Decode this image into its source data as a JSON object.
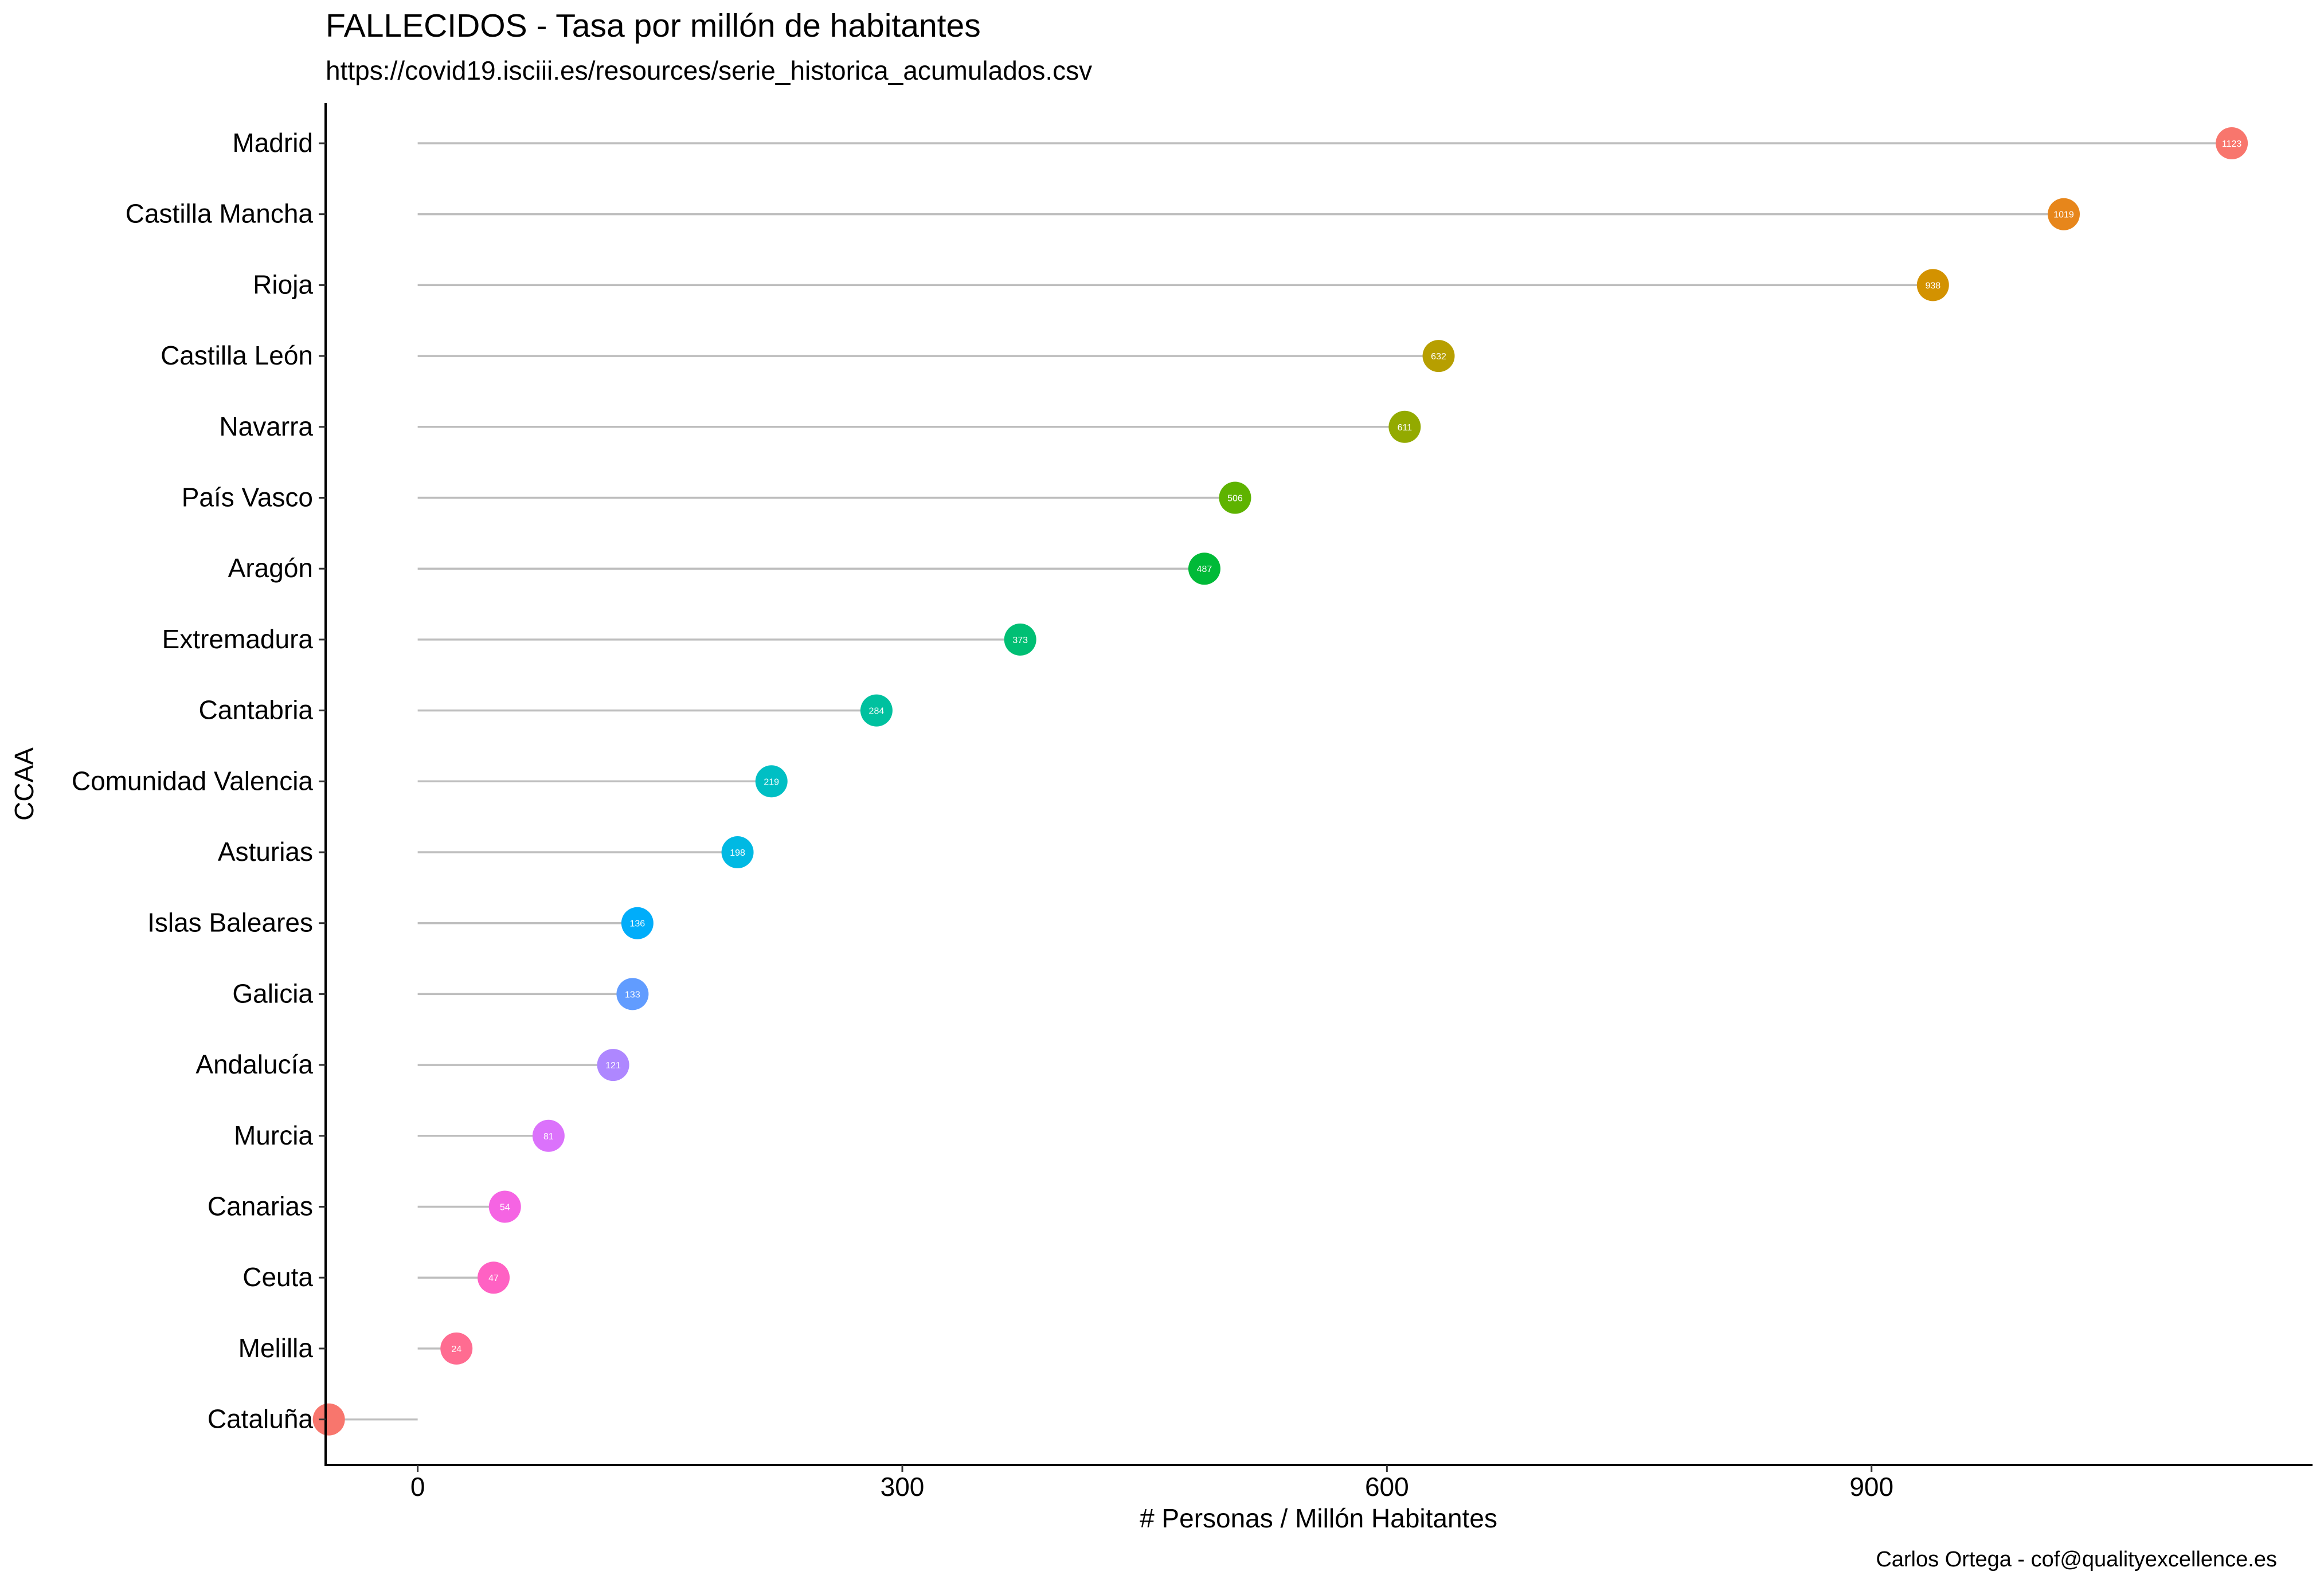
{
  "chart_data": {
    "type": "lollipop",
    "title": "FALLECIDOS - Tasa por millón de habitantes",
    "subtitle": "https://covid19.isciii.es/resources/serie_historica_acumulados.csv",
    "caption": "Carlos Ortega - cof@qualityexcellence.es",
    "xlabel": "# Personas / Millón Habitantes",
    "ylabel": "CCAA",
    "xlim": [
      -57,
      1173
    ],
    "xticks": [
      0,
      300,
      600,
      900
    ],
    "grid": false,
    "legend": "none",
    "categories": [
      "Madrid",
      "Castilla Mancha",
      "Rioja",
      "Castilla León",
      "Navarra",
      "País Vasco",
      "Aragón",
      "Extremadura",
      "Cantabria",
      "Comunidad Valencia",
      "Asturias",
      "Islas Baleares",
      "Galicia",
      "Andalucía",
      "Murcia",
      "Canarias",
      "Ceuta",
      "Melilla",
      "Cataluña"
    ],
    "values": [
      1123,
      1019,
      938,
      632,
      611,
      506,
      487,
      373,
      284,
      219,
      198,
      136,
      133,
      121,
      81,
      54,
      47,
      24,
      -55
    ],
    "point_labels": [
      "1123",
      "1019",
      "938",
      "632",
      "611",
      "506",
      "487",
      "373",
      "284",
      "219",
      "198",
      "136",
      "133",
      "121",
      "81",
      "54",
      "47",
      "24",
      ""
    ],
    "colors": [
      "#F8766D",
      "#E7861B",
      "#D39200",
      "#B79F00",
      "#93AA00",
      "#5EB300",
      "#00BA38",
      "#00BF74",
      "#00C19F",
      "#00BFC4",
      "#00B9E3",
      "#00ADFA",
      "#619CFF",
      "#AE87FF",
      "#DB72FB",
      "#F564E3",
      "#FF61C3",
      "#FF6C91",
      "#F8766D"
    ],
    "segment_color": "#BEBEBE"
  }
}
